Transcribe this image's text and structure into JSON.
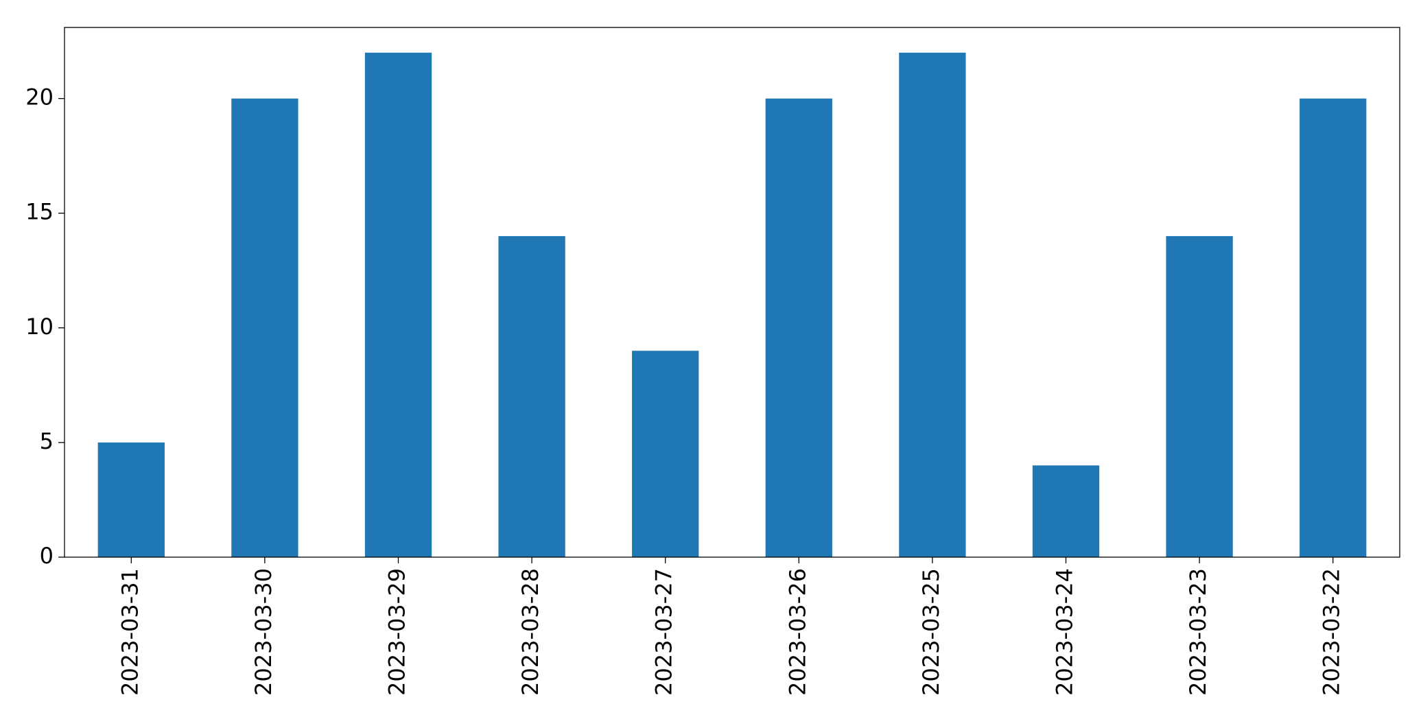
{
  "chart_data": {
    "type": "bar",
    "categories": [
      "2023-03-31",
      "2023-03-30",
      "2023-03-29",
      "2023-03-28",
      "2023-03-27",
      "2023-03-26",
      "2023-03-25",
      "2023-03-24",
      "2023-03-23",
      "2023-03-22"
    ],
    "values": [
      5,
      20,
      22,
      14,
      9,
      20,
      22,
      4,
      14,
      20
    ],
    "color": "#1f77b4",
    "ylim": [
      0,
      23.1
    ],
    "yticks": [
      0,
      5,
      10,
      15,
      20
    ],
    "grid": false
  }
}
